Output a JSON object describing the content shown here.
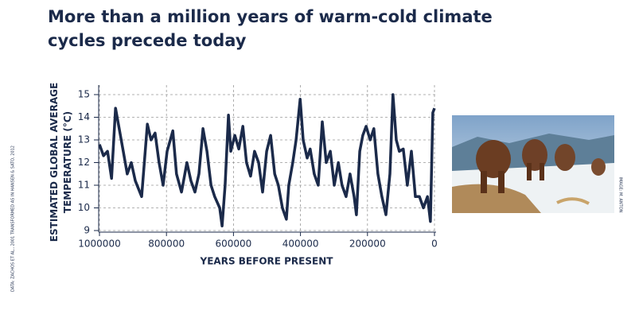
{
  "chart_data": {
    "type": "line",
    "title": "More than a million years of warm-cold climate cycles precede today",
    "y_label": "ESTIMATED GLOBAL AVERAGE TEMPERATURE (°C)",
    "x_label": "YEARS BEFORE PRESENT",
    "source": "DATA: ZACHOS ET AL., 2001 TRANSFORMED AS IN HANSEN & SATO, 2012",
    "image_credit": "IMAGE: M. ANTON",
    "color": "#1b2a4a",
    "grid": true,
    "x_reversed": true,
    "xlim": [
      1000000,
      0
    ],
    "ylim": [
      9,
      15
    ],
    "xticks": [
      1000000,
      800000,
      600000,
      400000,
      200000,
      0
    ],
    "yticks": [
      9,
      10,
      11,
      12,
      13,
      14,
      15
    ],
    "x": [
      1000000,
      988000,
      976000,
      964000,
      952000,
      941000,
      929000,
      917000,
      905000,
      893000,
      874000,
      857000,
      846000,
      834000,
      822000,
      810000,
      798000,
      781000,
      770000,
      755000,
      739000,
      727000,
      715000,
      703000,
      691000,
      679000,
      667000,
      656000,
      641000,
      634000,
      625000,
      615000,
      608000,
      596000,
      584000,
      572000,
      561000,
      549000,
      537000,
      525000,
      513000,
      501000,
      489000,
      477000,
      466000,
      454000,
      442000,
      435000,
      423000,
      413000,
      401000,
      392000,
      380000,
      371000,
      359000,
      347000,
      335000,
      323000,
      311000,
      299000,
      287000,
      276000,
      264000,
      252000,
      240000,
      233000,
      223000,
      214000,
      204000,
      192000,
      181000,
      169000,
      157000,
      145000,
      133000,
      124000,
      114000,
      105000,
      93000,
      81000,
      69000,
      57000,
      45000,
      33000,
      21000,
      12000,
      5000,
      0
    ],
    "values": [
      12.8,
      12.3,
      12.5,
      11.3,
      14.4,
      13.5,
      12.5,
      11.5,
      12.0,
      11.2,
      10.5,
      13.7,
      13.0,
      13.3,
      12.0,
      11.0,
      12.5,
      13.4,
      11.5,
      10.7,
      12.0,
      11.2,
      10.7,
      11.5,
      13.5,
      12.5,
      11.0,
      10.5,
      10.0,
      9.2,
      11.0,
      14.1,
      12.5,
      13.2,
      12.6,
      13.6,
      12.0,
      11.4,
      12.5,
      12.0,
      10.7,
      12.5,
      13.2,
      11.5,
      11.0,
      10.0,
      9.5,
      11.0,
      12.0,
      13.0,
      14.8,
      13.0,
      12.2,
      12.6,
      11.5,
      11.0,
      13.8,
      12.0,
      12.5,
      11.0,
      12.0,
      11.0,
      10.5,
      11.5,
      10.5,
      9.7,
      12.5,
      13.2,
      13.6,
      13.0,
      13.5,
      11.5,
      10.5,
      9.7,
      11.5,
      15.0,
      13.0,
      12.5,
      12.6,
      11.0,
      12.5,
      10.5,
      10.5,
      10.0,
      10.5,
      9.4,
      14.2,
      14.4
    ]
  }
}
